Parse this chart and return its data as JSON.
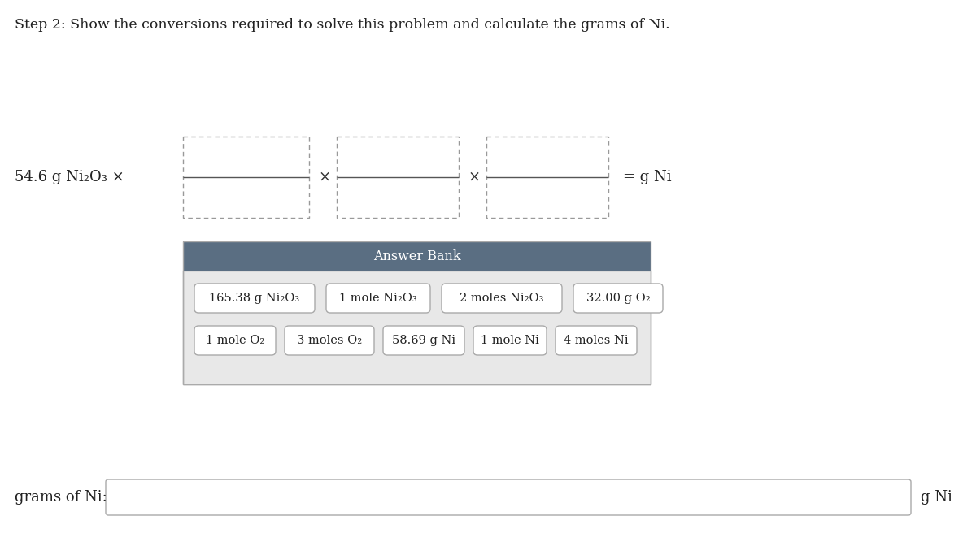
{
  "title": "Step 2: Show the conversions required to solve this problem and calculate the grams of Ni.",
  "title_fontsize": 12.5,
  "title_color": "#222222",
  "bg_color": "#ffffff",
  "given_label": "54.6 g Ni₂O₃ ×",
  "equals_label": "= g Ni",
  "answer_bank_header": "Answer Bank",
  "answer_bank_header_bg": "#5a6e82",
  "answer_bank_header_color": "white",
  "answer_bank_bg": "#e8e8e8",
  "answer_bank_border": "#aaaaaa",
  "answer_items_row1": [
    "165.38 g Ni₂O₃",
    "1 mole Ni₂O₃",
    "2 moles Ni₂O₃",
    "32.00 g O₂"
  ],
  "answer_items_row2": [
    "1 mole O₂",
    "3 moles O₂",
    "58.69 g Ni",
    "1 mole Ni",
    "4 moles Ni"
  ],
  "answer_item_bg": "white",
  "answer_item_border": "#aaaaaa",
  "bottom_label_left": "grams of Ni:",
  "bottom_label_right": "g Ni",
  "bottom_box_bg": "white",
  "bottom_box_border": "#aaaaaa",
  "multiply_symbol": "×",
  "font_family": "DejaVu Serif",
  "dash_color": "#999999",
  "line_color": "#555555"
}
